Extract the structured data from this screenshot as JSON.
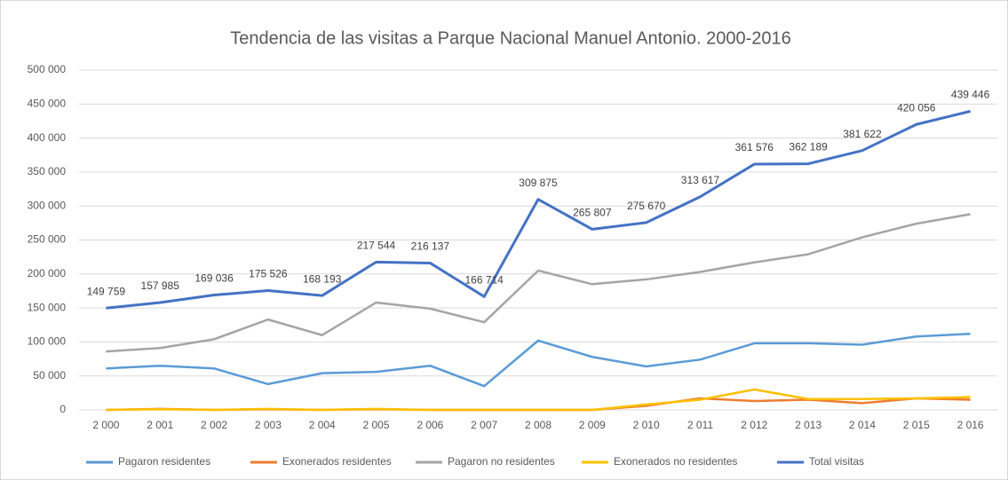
{
  "chart_data": {
    "type": "line",
    "title": "Tendencia de las visitas a Parque Nacional Manuel Antonio. 2000-2016",
    "categories": [
      "2 000",
      "2 001",
      "2 002",
      "2 003",
      "2 004",
      "2 005",
      "2 006",
      "2 007",
      "2 008",
      "2 009",
      "2 010",
      "2 011",
      "2 012",
      "2 013",
      "2 014",
      "2 015",
      "2 016"
    ],
    "ylim": [
      0,
      500000
    ],
    "yticks": [
      {
        "value": 0,
        "label": "0"
      },
      {
        "value": 50000,
        "label": "50 000"
      },
      {
        "value": 100000,
        "label": "100 000"
      },
      {
        "value": 150000,
        "label": "150 000"
      },
      {
        "value": 200000,
        "label": "200 000"
      },
      {
        "value": 250000,
        "label": "250 000"
      },
      {
        "value": 300000,
        "label": "300 000"
      },
      {
        "value": 350000,
        "label": "350 000"
      },
      {
        "value": 400000,
        "label": "400 000"
      },
      {
        "value": 450000,
        "label": "450 000"
      },
      {
        "value": 500000,
        "label": "500 000"
      }
    ],
    "grid": true,
    "legend": "bottom",
    "series": [
      {
        "name": "Pagaron residentes",
        "color": "#5b9bd5",
        "values": [
          61000,
          65000,
          61000,
          38000,
          54000,
          56000,
          65000,
          35000,
          102000,
          78000,
          64000,
          74000,
          98000,
          98000,
          96000,
          108000,
          112000
        ]
      },
      {
        "name": "Exonerados residentes",
        "color": "#ed7d31",
        "values": [
          0,
          1500,
          0,
          1000,
          0,
          1000,
          0,
          0,
          0,
          0,
          6000,
          17000,
          13000,
          15000,
          10000,
          17000,
          15000
        ]
      },
      {
        "name": "Pagaron no residentes",
        "color": "#a5a5a5",
        "values": [
          86000,
          91000,
          104000,
          133000,
          110000,
          158000,
          149000,
          129000,
          205000,
          185000,
          192000,
          203000,
          217000,
          229000,
          254000,
          274000,
          288000
        ]
      },
      {
        "name": "Exonerados no residentes",
        "color": "#ffc000",
        "values": [
          0,
          1000,
          0,
          1500,
          0,
          1500,
          0,
          0,
          0,
          0,
          8000,
          15000,
          30000,
          16000,
          16000,
          17000,
          19000
        ]
      },
      {
        "name": "Total visitas",
        "color": "#4472c4",
        "values": [
          149759,
          157985,
          169036,
          175526,
          168193,
          217544,
          216137,
          166714,
          309875,
          265807,
          275670,
          313617,
          361576,
          362189,
          381622,
          420056,
          439446
        ],
        "value_labels": [
          "149 759",
          "157 985",
          "169 036",
          "175 526",
          "168 193",
          "217 544",
          "216 137",
          "166 714",
          "309 875",
          "265 807",
          "275 670",
          "313 617",
          "361 576",
          "362 189",
          "381 622",
          "420 056",
          "439 446"
        ]
      }
    ]
  }
}
